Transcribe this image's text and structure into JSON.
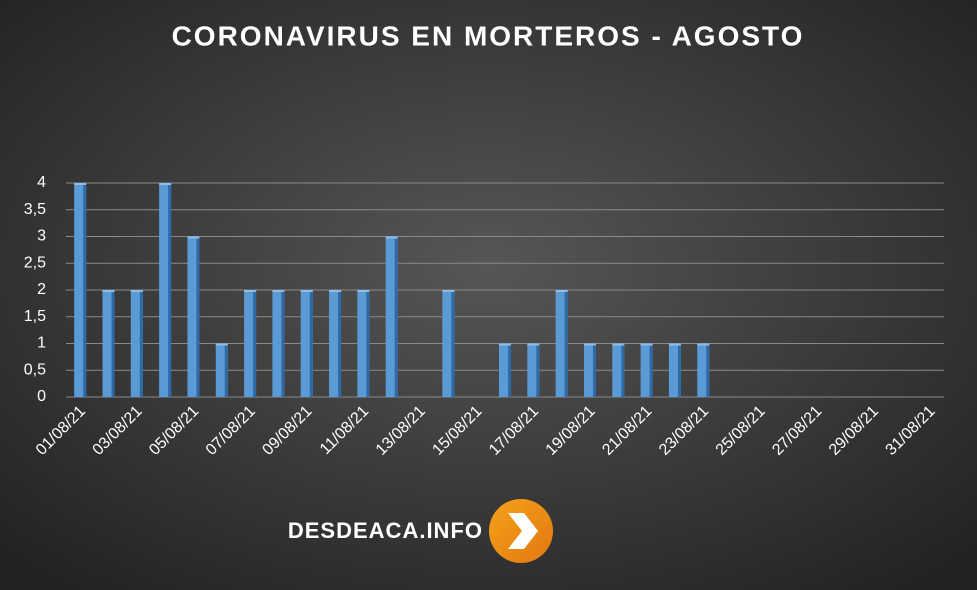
{
  "chart_data": {
    "type": "bar",
    "title": "CORONAVIRUS EN MORTEROS - AGOSTO",
    "categories": [
      "01/08/21",
      null,
      "03/08/21",
      null,
      "05/08/21",
      null,
      "07/08/21",
      null,
      "09/08/21",
      null,
      "11/08/21",
      null,
      "13/08/21",
      null,
      "15/08/21",
      null,
      "17/08/21",
      null,
      "19/08/21",
      null,
      "21/08/21",
      null,
      "23/08/21",
      null,
      "25/08/21",
      null,
      "27/08/21",
      null,
      "29/08/21",
      null,
      "31/08/21"
    ],
    "values": [
      4,
      2,
      2,
      4,
      3,
      1,
      2,
      2,
      2,
      2,
      2,
      3,
      null,
      2,
      null,
      1,
      1,
      2,
      1,
      1,
      1,
      1,
      1,
      null,
      null,
      null,
      null,
      null,
      null,
      null,
      null
    ],
    "color": "#5b9bd5",
    "ylim": [
      0,
      4
    ],
    "yticks": [
      0,
      {
        "value": 0.5,
        "label": "0,5"
      },
      1,
      {
        "value": 1.5,
        "label": "1,5"
      },
      2,
      {
        "value": 2.5,
        "label": "2,5"
      },
      3,
      {
        "value": 3.5,
        "label": "3,5"
      },
      4
    ],
    "grid": true
  },
  "watermark": "DESDEACA.INFO"
}
